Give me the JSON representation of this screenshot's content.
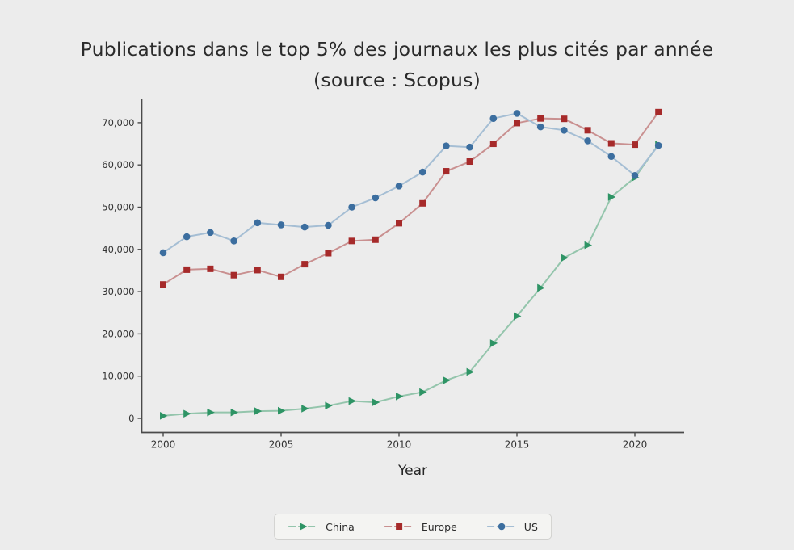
{
  "page": {
    "background": "#ececec"
  },
  "chart_data": {
    "type": "line",
    "title": "Publications dans le top 5% des journaux les plus cités par année",
    "subtitle": "(source : Scopus)",
    "xlabel": "Year",
    "ylabel": "",
    "x": [
      2000,
      2001,
      2002,
      2003,
      2004,
      2005,
      2006,
      2007,
      2008,
      2009,
      2010,
      2011,
      2012,
      2013,
      2014,
      2015,
      2016,
      2017,
      2018,
      2019,
      2020,
      2021
    ],
    "series": [
      {
        "name": "China",
        "marker": "triangle-right",
        "marker_color": "#2e9465",
        "line_color": "#94c5ac",
        "values": [
          600,
          1100,
          1400,
          1400,
          1700,
          1800,
          2300,
          3000,
          4100,
          3800,
          5200,
          6200,
          9000,
          11000,
          17800,
          24200,
          30900,
          38000,
          41000,
          52400,
          57000,
          64800
        ]
      },
      {
        "name": "Europe",
        "marker": "square",
        "marker_color": "#a62a2a",
        "line_color": "#c99090",
        "values": [
          31700,
          35200,
          35400,
          33900,
          35100,
          33500,
          36500,
          39100,
          42000,
          42300,
          46200,
          50900,
          58500,
          60800,
          65000,
          69900,
          71000,
          70900,
          68200,
          65100,
          64800,
          72500
        ]
      },
      {
        "name": "US",
        "marker": "circle",
        "marker_color": "#3c6e9f",
        "line_color": "#a5bed4",
        "values": [
          39200,
          43000,
          44000,
          42000,
          46300,
          45800,
          45300,
          45700,
          50000,
          52200,
          55000,
          58300,
          64500,
          64200,
          71000,
          72200,
          69000,
          68200,
          65700,
          62000,
          57500,
          64600
        ]
      }
    ],
    "y_ticks": [
      {
        "value": 0,
        "label": "0"
      },
      {
        "value": 10000,
        "label": "10,000"
      },
      {
        "value": 20000,
        "label": "20,000"
      },
      {
        "value": 30000,
        "label": "30,000"
      },
      {
        "value": 40000,
        "label": "40,000"
      },
      {
        "value": 50000,
        "label": "50,000"
      },
      {
        "value": 60000,
        "label": "60,000"
      },
      {
        "value": 70000,
        "label": "70,000"
      }
    ],
    "x_ticks": [
      {
        "value": 2000,
        "label": "2000"
      },
      {
        "value": 2005,
        "label": "2005"
      },
      {
        "value": 2010,
        "label": "2010"
      },
      {
        "value": 2015,
        "label": "2015"
      },
      {
        "value": 2020,
        "label": "2020"
      }
    ],
    "xlim": [
      1999.1,
      2022.2
    ],
    "ylim": [
      -3300,
      73900
    ],
    "grid": false,
    "legend_position": "bottom-center",
    "axis_color": "#4a4a4a",
    "tick_text_color": "#333333",
    "title_color": "#2b2b2b"
  }
}
